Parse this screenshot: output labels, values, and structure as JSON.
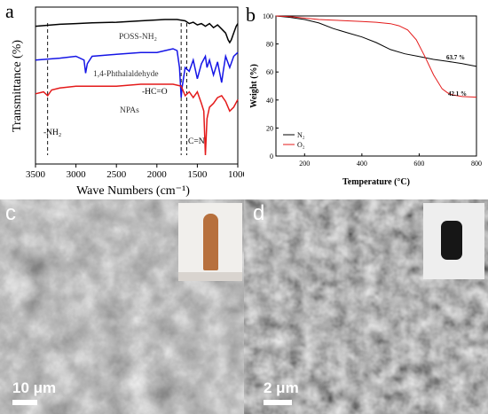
{
  "panel_a": {
    "letter": "a",
    "chart_data": {
      "type": "line",
      "xlabel": "Wave Numbers (cm⁻¹)",
      "ylabel": "Transmittance (%)",
      "xlim": [
        3500,
        1000
      ],
      "x_reversed": true,
      "x_ticks": [
        "3500",
        "3000",
        "2500",
        "2000",
        "1500",
        "1000"
      ],
      "series": [
        {
          "name": "POSS-NH₂",
          "color": "#000000",
          "x": [
            3500,
            3400,
            3300,
            3200,
            3000,
            2800,
            2500,
            2200,
            1900,
            1750,
            1650,
            1600,
            1550,
            1500,
            1450,
            1400,
            1350,
            1300,
            1250,
            1200,
            1150,
            1120,
            1100,
            1080,
            1050,
            1020,
            1000
          ],
          "y": [
            90,
            90.5,
            91,
            91.5,
            92,
            92.5,
            93,
            94,
            95,
            95,
            94,
            92,
            93,
            91,
            92,
            90,
            92,
            89,
            91,
            88,
            85,
            80,
            78,
            80,
            85,
            90,
            92
          ]
        },
        {
          "name": "1,4-Phthalaldehyde",
          "color": "#1515e6",
          "x": [
            3500,
            3200,
            3000,
            2900,
            2880,
            2860,
            2800,
            2500,
            2200,
            2000,
            1900,
            1800,
            1750,
            1720,
            1700,
            1690,
            1650,
            1600,
            1550,
            1500,
            1450,
            1400,
            1380,
            1350,
            1300,
            1250,
            1200,
            1180,
            1150,
            1100,
            1050,
            1000
          ],
          "y": [
            62,
            63,
            64,
            62,
            55,
            60,
            64,
            65,
            66,
            66,
            67,
            68,
            67,
            58,
            42,
            47,
            58,
            56,
            62,
            52,
            60,
            64,
            58,
            62,
            54,
            61,
            50,
            56,
            64,
            58,
            64,
            66
          ]
        },
        {
          "name": "NPAs",
          "color": "#e41a1a",
          "x": [
            3500,
            3400,
            3350,
            3300,
            3200,
            3000,
            2800,
            2500,
            2200,
            2000,
            1800,
            1700,
            1650,
            1600,
            1550,
            1500,
            1450,
            1420,
            1400,
            1380,
            1350,
            1300,
            1250,
            1200,
            1150,
            1100,
            1050,
            1000
          ],
          "y": [
            37,
            38,
            36,
            39,
            40,
            41,
            41,
            41,
            42,
            42,
            42,
            41,
            36,
            38,
            35,
            38,
            32,
            28,
            5,
            24,
            30,
            32,
            35,
            36,
            33,
            28,
            30,
            34
          ]
        }
      ],
      "annotations": [
        "POSS-NH₂",
        "1,4-Phthalaldehyde",
        "NPAs",
        "-HC=O",
        "C=N",
        "-NH₂"
      ],
      "reference_lines_x": [
        3350,
        1700,
        1630
      ]
    }
  },
  "panel_b": {
    "letter": "b",
    "chart_data": {
      "type": "line",
      "xlabel": "Temperature (°C)",
      "ylabel": "Weight (%)",
      "xlim": [
        100,
        800
      ],
      "ylim": [
        0,
        100
      ],
      "x_ticks": [
        "200",
        "400",
        "600",
        "800"
      ],
      "y_ticks": [
        "0",
        "20",
        "40",
        "60",
        "80",
        "100"
      ],
      "series": [
        {
          "name": "N₂",
          "color": "#000000",
          "x": [
            100,
            150,
            200,
            250,
            300,
            350,
            400,
            450,
            500,
            550,
            600,
            650,
            700,
            750,
            800
          ],
          "y": [
            100,
            99,
            97.5,
            95,
            91,
            88,
            85,
            81,
            76,
            73,
            71,
            69,
            67.5,
            66,
            64
          ]
        },
        {
          "name": "O₂",
          "color": "#e41a1a",
          "x": [
            100,
            150,
            200,
            250,
            300,
            350,
            400,
            450,
            500,
            530,
            560,
            590,
            620,
            650,
            680,
            700,
            720,
            750,
            800
          ],
          "y": [
            100,
            99.5,
            98.5,
            97.5,
            97,
            96.5,
            96,
            95.5,
            94.5,
            93,
            90,
            83,
            71,
            58,
            48,
            45,
            43.5,
            42.5,
            42
          ]
        }
      ],
      "annotations": [
        "63.7 %",
        "42.1 %"
      ],
      "legend": "lower-left"
    }
  },
  "panel_c": {
    "letter": "c",
    "scale_bar": "10 μm"
  },
  "panel_d": {
    "letter": "d",
    "scale_bar": "2 μm"
  }
}
